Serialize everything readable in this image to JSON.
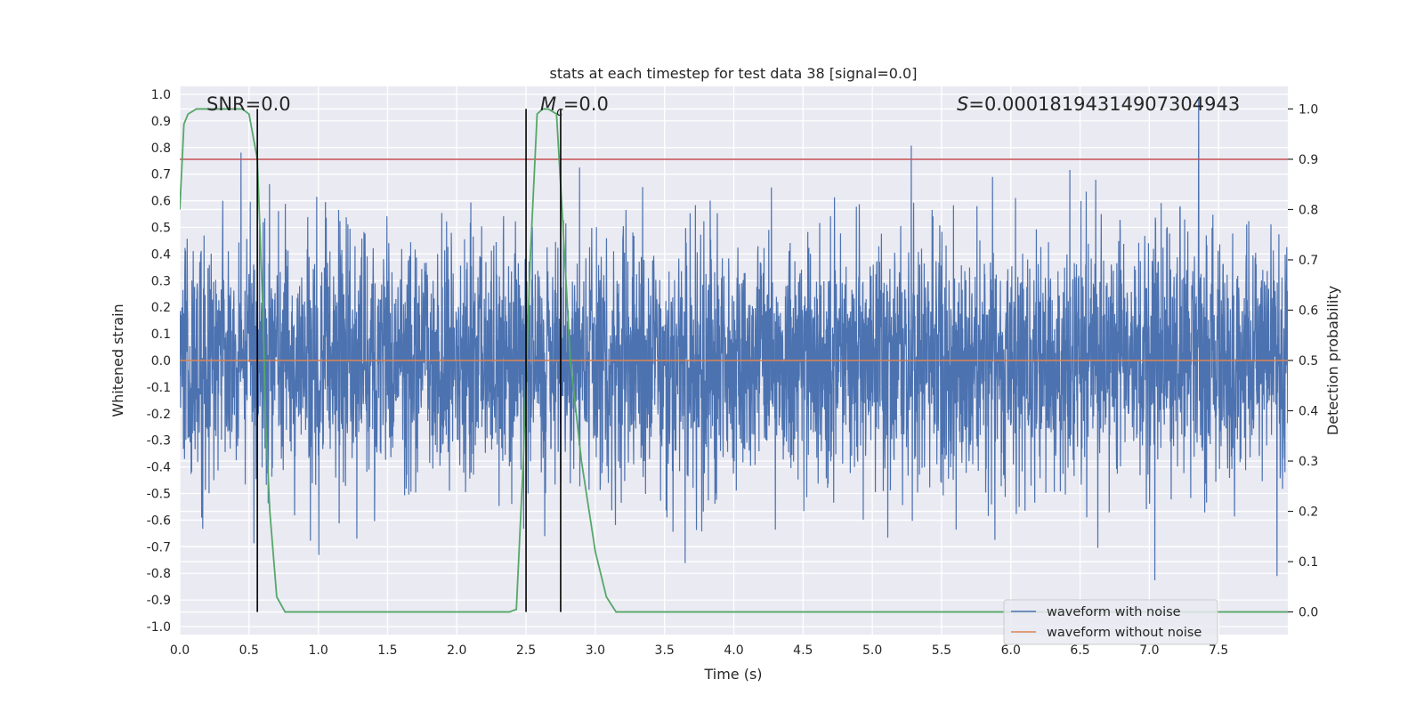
{
  "chart_data": {
    "type": "line",
    "title": "stats at each timestep for test data 38 [signal=0.0]",
    "xlabel": "Time (s)",
    "ylabel": "Whitened strain",
    "y2label": "Detection probability",
    "xlim": [
      0.0,
      8.0
    ],
    "ylim": [
      -1.03,
      1.03
    ],
    "y2lim": [
      -0.045,
      1.045
    ],
    "x_ticks": [
      "0.0",
      "0.5",
      "1.0",
      "1.5",
      "2.0",
      "2.5",
      "3.0",
      "3.5",
      "4.0",
      "4.5",
      "5.0",
      "5.5",
      "6.0",
      "6.5",
      "7.0",
      "7.5"
    ],
    "y_ticks": [
      "1.0",
      "0.9",
      "0.8",
      "0.7",
      "0.6",
      "0.5",
      "0.4",
      "0.3",
      "0.2",
      "0.1",
      "0.0",
      "-0.1",
      "-0.2",
      "-0.3",
      "-0.4",
      "-0.5",
      "-0.6",
      "-0.7",
      "-0.8",
      "-0.9",
      "-1.0"
    ],
    "y2_ticks": [
      "1.0",
      "0.9",
      "0.8",
      "0.7",
      "0.6",
      "0.5",
      "0.4",
      "0.3",
      "0.2",
      "0.1",
      "0.0"
    ],
    "grid": true,
    "legend_position": "lower-right",
    "annotations": {
      "snr": "SNR=0.0",
      "mc": "=0.0",
      "mc_symbol": "M",
      "mc_subscript": "c",
      "s": "=0.00018194314907304943",
      "s_symbol": "S"
    },
    "series": [
      {
        "name": "waveform with noise",
        "color": "#4c72b0",
        "axis": "left",
        "description_values": "dense noise spanning roughly -0.93 to 1.0 across 0-8 s"
      },
      {
        "name": "waveform without noise",
        "color": "#dd8452",
        "axis": "left",
        "y_constant": 0.0
      },
      {
        "axis": "right",
        "color": "#55a868",
        "x": [
          0.0,
          0.03,
          0.06,
          0.12,
          0.3,
          0.45,
          0.5,
          0.56,
          0.6,
          0.62,
          0.65,
          0.7,
          0.76,
          0.85,
          1.5,
          2.0,
          2.38,
          2.43,
          2.48,
          2.53,
          2.58,
          2.62,
          2.66,
          2.72,
          2.76,
          2.82,
          2.9,
          3.0,
          3.08,
          3.15,
          3.3,
          8.0
        ],
        "y": [
          0.8,
          0.97,
          0.99,
          1.0,
          1.0,
          1.0,
          0.99,
          0.9,
          0.6,
          0.38,
          0.2,
          0.03,
          0.0,
          0.0,
          0.0,
          0.0,
          0.0,
          0.005,
          0.3,
          0.7,
          0.99,
          1.0,
          1.0,
          0.99,
          0.8,
          0.5,
          0.3,
          0.12,
          0.03,
          0.0,
          0.0,
          0.0
        ]
      },
      {
        "axis": "right",
        "color": "#c44e52",
        "y_constant": 0.9
      }
    ],
    "vlines": [
      {
        "x": 0.56,
        "color": "#000000"
      },
      {
        "x": 2.5,
        "color": "#000000"
      },
      {
        "x": 2.75,
        "color": "#000000"
      }
    ]
  }
}
